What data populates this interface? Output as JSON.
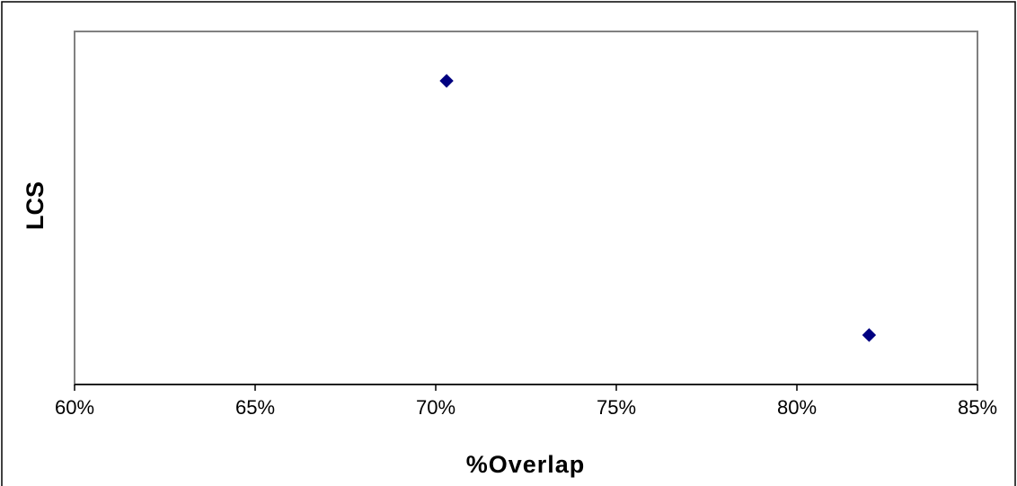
{
  "chart_data": {
    "type": "scatter",
    "title": "",
    "xlabel": "%Overlap",
    "ylabel": "LCS",
    "x_ticks": [
      "60%",
      "65%",
      "70%",
      "75%",
      "80%",
      "85%"
    ],
    "xlim": [
      0.6,
      0.85
    ],
    "ylim": [
      0,
      1
    ],
    "y_ticks_visible": false,
    "grid": false,
    "legend": "none",
    "series": [
      {
        "marker": "diamond",
        "color": "#000080",
        "points": [
          {
            "x": 0.703,
            "y": 0.86
          },
          {
            "x": 0.82,
            "y": 0.14
          }
        ]
      }
    ]
  },
  "colors": {
    "plot_border": "#808080",
    "outer_border": "#000000",
    "marker": "#000080"
  }
}
